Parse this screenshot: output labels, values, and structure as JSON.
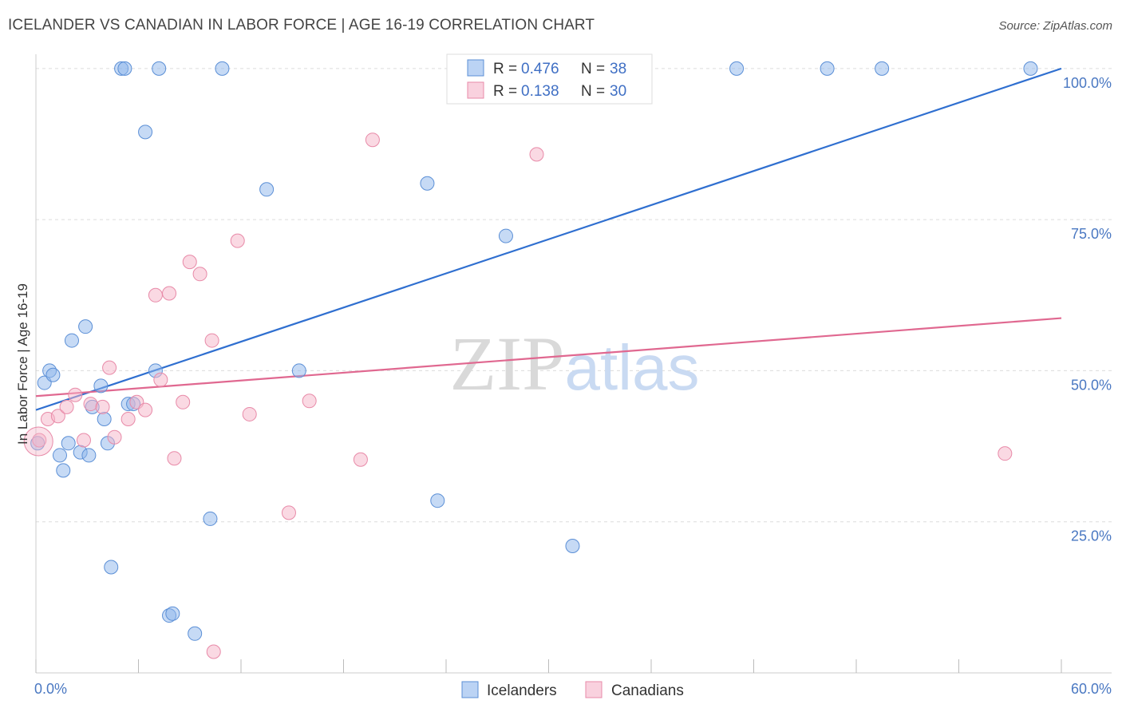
{
  "chart_data": {
    "type": "scatter",
    "title": "ICELANDER VS CANADIAN IN LABOR FORCE | AGE 16-19 CORRELATION CHART",
    "source": "Source: ZipAtlas.com",
    "xlabel": "",
    "ylabel": "In Labor Force | Age 16-19",
    "xlim": [
      0,
      60
    ],
    "ylim": [
      0,
      105
    ],
    "x_tick_labels": [
      "0.0%",
      "60.0%"
    ],
    "y_ticks": [
      25,
      50,
      75,
      100
    ],
    "y_tick_labels": [
      "25.0%",
      "50.0%",
      "75.0%",
      "100.0%"
    ],
    "grid": true,
    "legend_position": "top-center",
    "watermark": "ZIPatlas",
    "series": [
      {
        "name": "Icelanders",
        "color": "#8db6ec",
        "edge_color": "#5b8fd6",
        "line_color": "#2f6fd0",
        "r_label": "R =",
        "r_value": "0.476",
        "n_label": "N =",
        "n_value": "38",
        "trend": {
          "x": [
            0,
            60
          ],
          "y": [
            43.5,
            100.0
          ]
        },
        "points": [
          {
            "x": 0.1,
            "y": 38.0
          },
          {
            "x": 0.5,
            "y": 48.0
          },
          {
            "x": 0.8,
            "y": 50.0
          },
          {
            "x": 1.0,
            "y": 49.3
          },
          {
            "x": 1.4,
            "y": 36.0
          },
          {
            "x": 1.6,
            "y": 33.5
          },
          {
            "x": 1.9,
            "y": 38.0
          },
          {
            "x": 2.1,
            "y": 55.0
          },
          {
            "x": 2.6,
            "y": 36.5
          },
          {
            "x": 2.9,
            "y": 57.3
          },
          {
            "x": 3.1,
            "y": 36.0
          },
          {
            "x": 3.3,
            "y": 44.0
          },
          {
            "x": 3.8,
            "y": 47.5
          },
          {
            "x": 4.0,
            "y": 42.0
          },
          {
            "x": 4.2,
            "y": 38.0
          },
          {
            "x": 4.4,
            "y": 17.5
          },
          {
            "x": 5.0,
            "y": 100.0
          },
          {
            "x": 5.2,
            "y": 100.0
          },
          {
            "x": 5.4,
            "y": 44.5
          },
          {
            "x": 5.7,
            "y": 44.5
          },
          {
            "x": 6.4,
            "y": 89.5
          },
          {
            "x": 7.0,
            "y": 50.0
          },
          {
            "x": 7.2,
            "y": 100.0
          },
          {
            "x": 7.8,
            "y": 9.5
          },
          {
            "x": 8.0,
            "y": 9.8
          },
          {
            "x": 9.3,
            "y": 6.5
          },
          {
            "x": 10.2,
            "y": 25.5
          },
          {
            "x": 10.9,
            "y": 100.0
          },
          {
            "x": 13.5,
            "y": 80.0
          },
          {
            "x": 15.4,
            "y": 50.0
          },
          {
            "x": 22.9,
            "y": 81.0
          },
          {
            "x": 23.5,
            "y": 28.5
          },
          {
            "x": 27.5,
            "y": 72.3
          },
          {
            "x": 31.4,
            "y": 21.0
          },
          {
            "x": 41.0,
            "y": 100.0
          },
          {
            "x": 46.3,
            "y": 100.0
          },
          {
            "x": 49.5,
            "y": 100.0
          },
          {
            "x": 58.2,
            "y": 100.0
          }
        ]
      },
      {
        "name": "Canadians",
        "color": "#f5b3c8",
        "edge_color": "#e88aa8",
        "line_color": "#e06890",
        "r_label": "R =",
        "r_value": "0.138",
        "n_label": "N =",
        "n_value": "30",
        "trend": {
          "x": [
            0,
            60
          ],
          "y": [
            45.8,
            58.7
          ]
        },
        "points": [
          {
            "x": 0.2,
            "y": 38.5
          },
          {
            "x": 0.7,
            "y": 42.0
          },
          {
            "x": 1.3,
            "y": 42.5
          },
          {
            "x": 1.8,
            "y": 44.0
          },
          {
            "x": 2.3,
            "y": 46.0
          },
          {
            "x": 2.8,
            "y": 38.5
          },
          {
            "x": 3.2,
            "y": 44.5
          },
          {
            "x": 3.9,
            "y": 44.0
          },
          {
            "x": 4.3,
            "y": 50.5
          },
          {
            "x": 4.6,
            "y": 39.0
          },
          {
            "x": 5.4,
            "y": 42.0
          },
          {
            "x": 5.9,
            "y": 44.8
          },
          {
            "x": 6.4,
            "y": 43.5
          },
          {
            "x": 7.0,
            "y": 62.5
          },
          {
            "x": 7.3,
            "y": 48.5
          },
          {
            "x": 7.8,
            "y": 62.8
          },
          {
            "x": 8.1,
            "y": 35.5
          },
          {
            "x": 8.6,
            "y": 44.8
          },
          {
            "x": 9.0,
            "y": 68.0
          },
          {
            "x": 9.6,
            "y": 66.0
          },
          {
            "x": 10.3,
            "y": 55.0
          },
          {
            "x": 10.4,
            "y": 3.5
          },
          {
            "x": 11.8,
            "y": 71.5
          },
          {
            "x": 12.5,
            "y": 42.8
          },
          {
            "x": 14.8,
            "y": 26.5
          },
          {
            "x": 16.0,
            "y": 45.0
          },
          {
            "x": 19.0,
            "y": 35.3
          },
          {
            "x": 19.7,
            "y": 88.2
          },
          {
            "x": 29.3,
            "y": 85.8
          },
          {
            "x": 56.7,
            "y": 36.3
          }
        ]
      }
    ]
  }
}
